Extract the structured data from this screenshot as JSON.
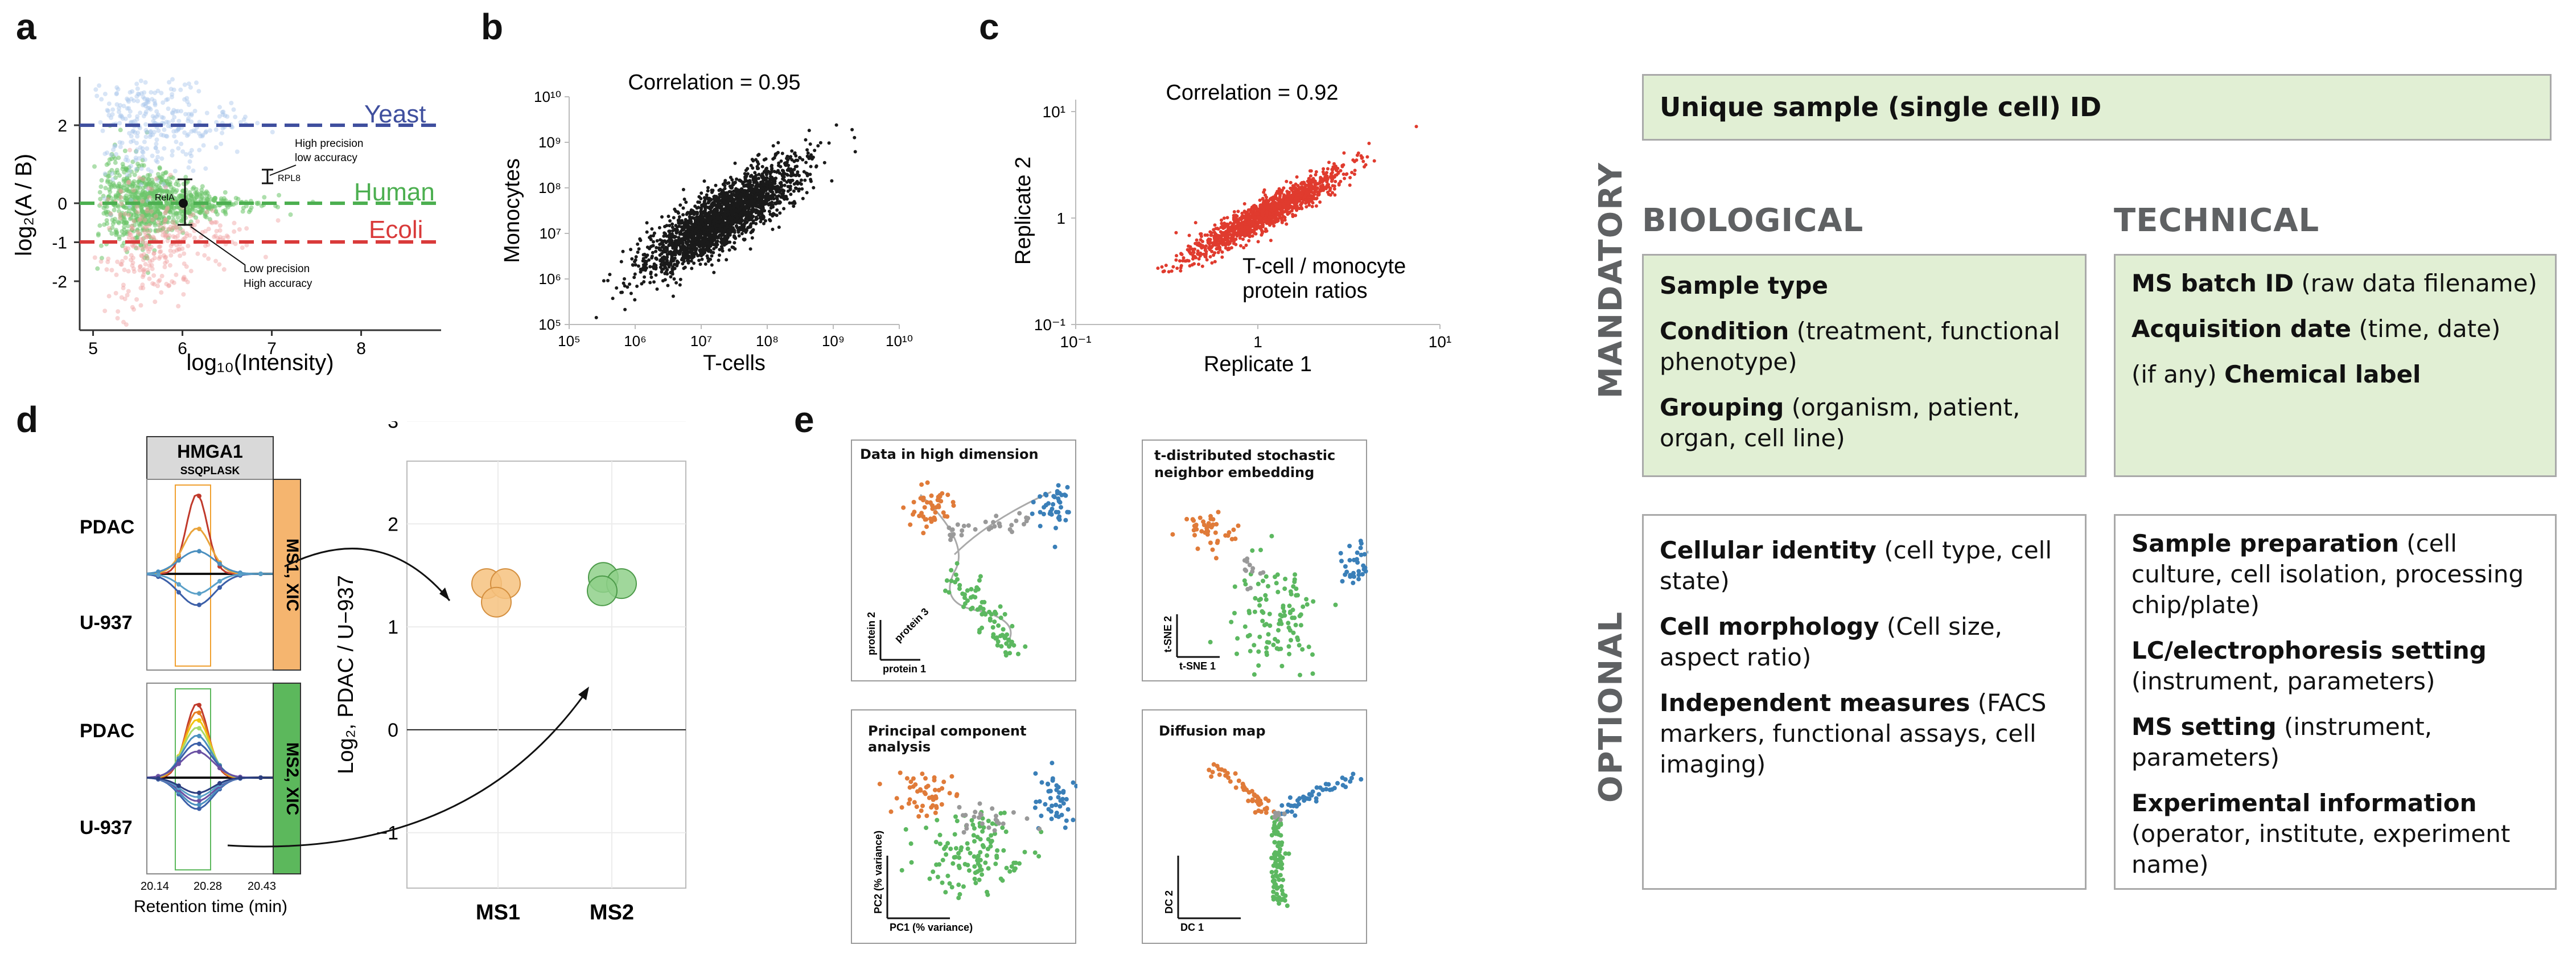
{
  "panel_labels": {
    "a": "a",
    "b": "b",
    "c": "c",
    "d": "d",
    "e": "e"
  },
  "panel_a": {
    "ylabel": "log₂(A / B)",
    "xlabel": "log₁₀(Intensity)",
    "xticks": [
      "5",
      "6",
      "7",
      "8"
    ],
    "yticks": [
      "2",
      "0",
      "-1",
      "-2"
    ],
    "series_labels": {
      "yeast": "Yeast",
      "human": "Human",
      "ecoli": "Ecoli"
    },
    "annotations": {
      "high_precision": "High precision",
      "low_accuracy": "low accuracy",
      "rpl8": "RPL8",
      "rela": "RelA",
      "low_precision": "Low precision",
      "high_accuracy": "High accuracy"
    },
    "colors": {
      "yeast": "#3f4f9e",
      "human": "#4caf50",
      "ecoli": "#d93a3a",
      "yeast_pts": "#a9c6ea",
      "human_pts": "#6cc46a",
      "ecoli_pts": "#f0a0a0"
    }
  },
  "panel_b": {
    "title": "Correlation = 0.95",
    "xlabel": "T-cells",
    "ylabel": "Monocytes",
    "xticks": [
      "10⁵",
      "10⁶",
      "10⁷",
      "10⁸",
      "10⁹",
      "10¹⁰"
    ],
    "yticks": [
      "10¹⁰",
      "10⁹",
      "10⁸",
      "10⁷",
      "10⁶",
      "10⁵"
    ],
    "point_color": "#1a1a1a"
  },
  "panel_c": {
    "title": "Correlation = 0.92",
    "xlabel": "Replicate 1",
    "ylabel": "Replicate 2",
    "xticks": [
      "10⁻¹",
      "1",
      "10¹"
    ],
    "yticks": [
      "10¹",
      "1",
      "10⁻¹"
    ],
    "annotation_line1": "T-cell / monocyte",
    "annotation_line2": "protein ratios",
    "point_color": "#e03b2e"
  },
  "panel_d": {
    "protein": "HMGA1",
    "peptide": "SSQPLASK",
    "ms1_label": "MS1, XIC",
    "ms2_label": "MS2, XIC",
    "row_labels": {
      "pdac_top": "PDAC",
      "u937_top": "U-937",
      "pdac_bottom": "PDAC",
      "u937_bottom": "U-937"
    },
    "rt_ticks": [
      "20.14",
      "20.28",
      "20.43"
    ],
    "rt_label": "Retention time (min)",
    "ylabel": "Log₂, PDAC / U−937",
    "yticks": [
      "3",
      "2",
      "1",
      "0",
      "−1"
    ],
    "categories": [
      "MS1",
      "MS2"
    ],
    "colors": {
      "ms1": "#f6c27f",
      "ms2": "#8fd08a"
    }
  },
  "panel_e": {
    "subpanels": [
      {
        "title": "Data in high dimension",
        "axis_x": "protein 1",
        "axis_y": "protein 2",
        "axis_z": "protein 3"
      },
      {
        "title_line1": "t-distributed stochastic",
        "title_line2": "neighbor embedding",
        "axis_x": "t-SNE 1",
        "axis_y": "t-SNE 2"
      },
      {
        "title": "Principal component analysis",
        "axis_x": "PC1 (% variance)",
        "axis_y": "PC2 (% variance)"
      },
      {
        "title": "Diffusion map",
        "axis_x": "DC 1",
        "axis_y": "DC 2"
      }
    ],
    "colors": {
      "orange": "#e07b39",
      "blue": "#3a7fb8",
      "green": "#5cb860",
      "gray": "#999999"
    }
  },
  "right_panel": {
    "unique_id": "Unique sample (single cell) ID",
    "mandatory": "MANDATORY",
    "optional": "OPTIONAL",
    "biological": "BIOLOGICAL",
    "technical": "TECHNICAL",
    "bio_mandatory": [
      {
        "bold": "Sample type",
        "rest": ""
      },
      {
        "bold": "Condition",
        "rest": " (treatment, functional phenotype)"
      },
      {
        "bold": "Grouping",
        "rest": " (organism, patient, organ, cell line)"
      }
    ],
    "tech_mandatory": [
      {
        "bold": "MS batch ID",
        "rest": " (raw data filename)"
      },
      {
        "bold": "Acquisition date",
        "rest": " (time, date)"
      },
      {
        "pre": "(if any) ",
        "bold": "Chemical label",
        "rest": ""
      }
    ],
    "bio_optional": [
      {
        "bold": "Cellular identity",
        "rest": " (cell type, cell state)"
      },
      {
        "bold": "Cell morphology",
        "rest": " (Cell size, aspect ratio)"
      },
      {
        "bold": "Independent measures",
        "rest": " (FACS markers, functional assays, cell imaging)"
      }
    ],
    "tech_optional": [
      {
        "bold": "Sample preparation",
        "rest": " (cell culture, cell isolation, processing chip/plate)"
      },
      {
        "bold": "LC/electrophoresis setting",
        "rest": " (instrument, parameters)"
      },
      {
        "bold": "MS setting",
        "rest": " (instrument, parameters)"
      },
      {
        "bold": "Experimental information",
        "rest": " (operator, institute, experiment name)"
      }
    ],
    "colors": {
      "green_fill": "#e1efd4",
      "border": "#a9a9a9",
      "label": "#5f6163"
    }
  }
}
